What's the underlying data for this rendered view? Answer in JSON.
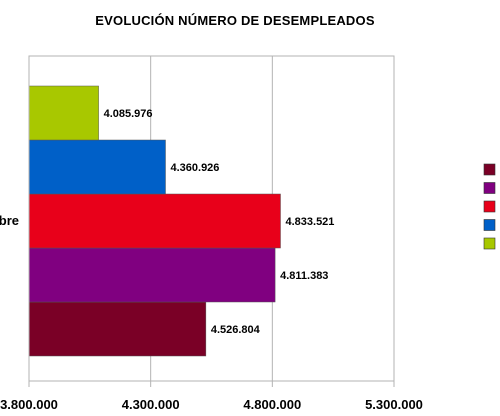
{
  "chart_data": {
    "type": "bar",
    "orientation": "horizontal",
    "title": "EVOLUCIÓN NÚMERO DE DESEMPLEADOS",
    "categories": [
      "bre"
    ],
    "xlim": [
      3800000,
      5300000
    ],
    "x_ticks": [
      3800000,
      4300000,
      4800000,
      5300000
    ],
    "x_tick_labels": [
      "3.800.000",
      "4.300.000",
      "4.800.000",
      "5.300.000"
    ],
    "grid": true,
    "legend": "right",
    "series": [
      {
        "color": "#7a0026",
        "value": 4526804,
        "label": "4.526.804"
      },
      {
        "color": "#800080",
        "value": 4811383,
        "label": "4.811.383"
      },
      {
        "color": "#e8001a",
        "value": 4833521,
        "label": "4.833.521"
      },
      {
        "color": "#0060c8",
        "value": 4360926,
        "label": "4.360.926"
      },
      {
        "color": "#a8c800",
        "value": 4085976,
        "label": "4.085.976"
      }
    ]
  }
}
